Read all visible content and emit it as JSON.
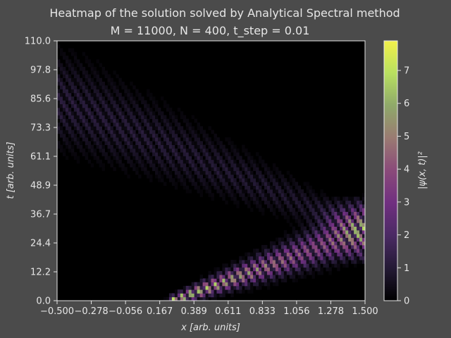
{
  "chart_data": {
    "type": "heatmap",
    "title_line1": "Heatmap of the solution solved by Analytical Spectral method",
    "title_line2": "M = 11000, N = 400, t_step = 0.01",
    "xlabel": "x [arb. units]",
    "ylabel": "t [arb. units]",
    "colorbar_label": "|ψ(x, t)|²",
    "xlim": [
      -0.5,
      1.5
    ],
    "ylim": [
      0.0,
      110.0
    ],
    "x_ticks": [
      "−0.500",
      "−0.278",
      "−0.056",
      "0.167",
      "0.389",
      "0.611",
      "0.833",
      "1.056",
      "1.278",
      "1.500"
    ],
    "y_ticks": [
      "0.0",
      "12.2",
      "24.4",
      "36.7",
      "48.9",
      "61.1",
      "73.3",
      "85.6",
      "97.8",
      "110.0"
    ],
    "colorbar_range": [
      0,
      7.9
    ],
    "colorbar_ticks": [
      "0",
      "1",
      "2",
      "3",
      "4",
      "5",
      "6",
      "7"
    ],
    "colormap": [
      "#000000",
      "#241a35",
      "#4a2a63",
      "#702f80",
      "#8a4a7a",
      "#9a7a72",
      "#8fa86a",
      "#b8e060",
      "#f2f04a"
    ],
    "features": [
      {
        "name": "wave packet incident",
        "from_x": 0.25,
        "from_t": 0.0,
        "to_x": 1.5,
        "to_t": 30.0,
        "peak": 7.9
      },
      {
        "name": "reflected packet",
        "from_x": 1.5,
        "from_t": 30.0,
        "to_x": -0.5,
        "to_t": 85.0,
        "peak": 2.5
      },
      {
        "name": "interference band",
        "x": 1.5,
        "t_range": [
          15.0,
          45.0
        ],
        "peak": 3.5
      }
    ]
  }
}
